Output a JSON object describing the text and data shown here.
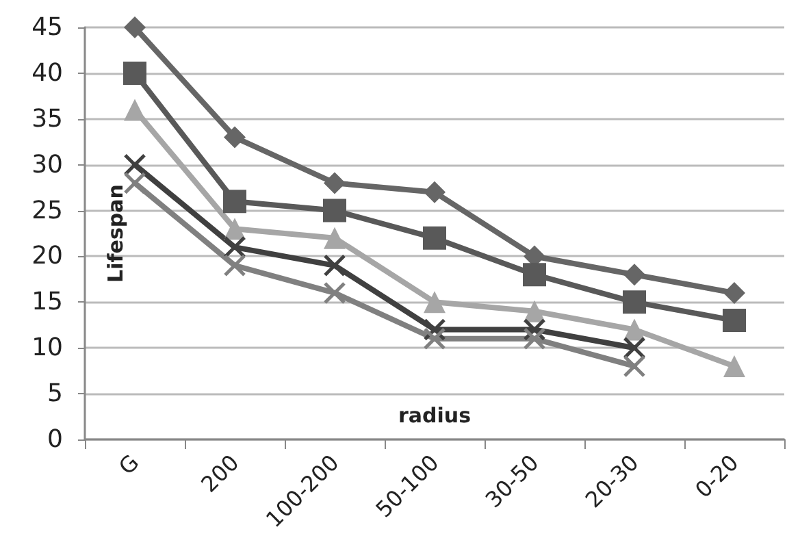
{
  "chart_data": {
    "type": "line",
    "xlabel": "radius",
    "ylabel": "Lifespan",
    "categories": [
      "G",
      "200",
      "100-200",
      "50-100",
      "30-50",
      "20-30",
      "0-20"
    ],
    "series": [
      {
        "color": "#666666",
        "marker": "diamond",
        "values": [
          45,
          33,
          28,
          27,
          20,
          18,
          16
        ]
      },
      {
        "color": "#595959",
        "marker": "square",
        "values": [
          40,
          26,
          25,
          22,
          18,
          15,
          13
        ]
      },
      {
        "color": "#a6a6a6",
        "marker": "triangle",
        "values": [
          36,
          23,
          22,
          15,
          14,
          12,
          8
        ]
      },
      {
        "color": "#404040",
        "marker": "cross",
        "values": [
          30,
          21,
          19,
          12,
          12,
          10,
          null
        ]
      },
      {
        "color": "#808080",
        "marker": "cross",
        "values": [
          28,
          19,
          16,
          11,
          11,
          8,
          null
        ]
      }
    ],
    "ylim": [
      0,
      45
    ],
    "yticks": [
      0,
      5,
      10,
      15,
      20,
      25,
      30,
      35,
      40,
      45
    ],
    "grid": "y",
    "line_style": "solid"
  }
}
